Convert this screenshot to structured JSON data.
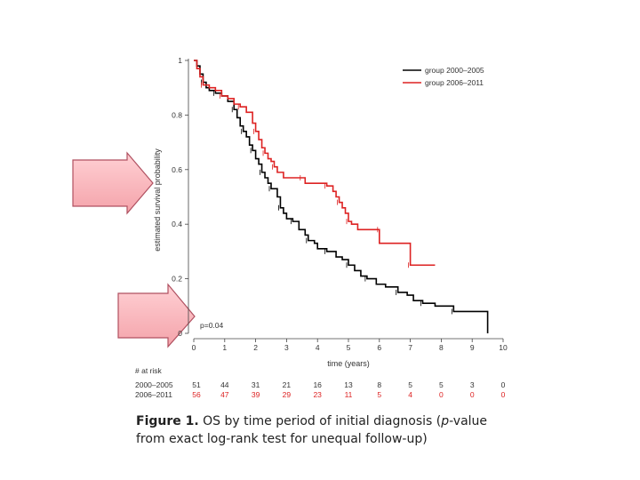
{
  "chart_data": {
    "type": "line",
    "ylabel": "estimated survival probability",
    "xlabel": "time (years)",
    "xlim": [
      0,
      10
    ],
    "ylim": [
      0,
      1
    ],
    "x_ticks": [
      "0",
      "1",
      "2",
      "3",
      "4",
      "5",
      "6",
      "7",
      "8",
      "9",
      "10"
    ],
    "y_ticks": [
      "0",
      "0.2",
      "0.4",
      "0.6",
      "0.8",
      "1"
    ],
    "grid": false,
    "legend_position": "top-right",
    "annotation": "p=0.04",
    "series": [
      {
        "name": "group 2000–2005",
        "color": "#000000",
        "points": [
          [
            0,
            1
          ],
          [
            0.1,
            0.98
          ],
          [
            0.2,
            0.95
          ],
          [
            0.3,
            0.92
          ],
          [
            0.4,
            0.9
          ],
          [
            0.5,
            0.89
          ],
          [
            0.7,
            0.88
          ],
          [
            0.9,
            0.87
          ],
          [
            1.1,
            0.85
          ],
          [
            1.3,
            0.82
          ],
          [
            1.4,
            0.79
          ],
          [
            1.5,
            0.76
          ],
          [
            1.6,
            0.74
          ],
          [
            1.7,
            0.72
          ],
          [
            1.8,
            0.69
          ],
          [
            1.9,
            0.67
          ],
          [
            2.0,
            0.64
          ],
          [
            2.1,
            0.62
          ],
          [
            2.2,
            0.59
          ],
          [
            2.3,
            0.57
          ],
          [
            2.4,
            0.55
          ],
          [
            2.5,
            0.53
          ],
          [
            2.6,
            0.53
          ],
          [
            2.7,
            0.5
          ],
          [
            2.8,
            0.46
          ],
          [
            2.9,
            0.44
          ],
          [
            3.0,
            0.42
          ],
          [
            3.2,
            0.41
          ],
          [
            3.4,
            0.38
          ],
          [
            3.6,
            0.36
          ],
          [
            3.7,
            0.34
          ],
          [
            3.9,
            0.33
          ],
          [
            4.0,
            0.31
          ],
          [
            4.3,
            0.3
          ],
          [
            4.6,
            0.28
          ],
          [
            4.8,
            0.27
          ],
          [
            5.0,
            0.25
          ],
          [
            5.2,
            0.23
          ],
          [
            5.4,
            0.21
          ],
          [
            5.6,
            0.2
          ],
          [
            5.9,
            0.18
          ],
          [
            6.2,
            0.17
          ],
          [
            6.6,
            0.15
          ],
          [
            6.9,
            0.14
          ],
          [
            7.1,
            0.12
          ],
          [
            7.4,
            0.11
          ],
          [
            7.8,
            0.1
          ],
          [
            8.3,
            0.1
          ],
          [
            8.4,
            0.08
          ],
          [
            9.5,
            0.08
          ],
          [
            9.5,
            0.0
          ]
        ],
        "at_risk": [
          "51",
          "44",
          "31",
          "21",
          "16",
          "13",
          "8",
          "5",
          "5",
          "3",
          "0"
        ]
      },
      {
        "name": "group 2006–2011",
        "color": "#dd2222",
        "points": [
          [
            0,
            1
          ],
          [
            0.1,
            0.97
          ],
          [
            0.2,
            0.94
          ],
          [
            0.3,
            0.91
          ],
          [
            0.5,
            0.9
          ],
          [
            0.7,
            0.89
          ],
          [
            0.9,
            0.87
          ],
          [
            1.1,
            0.86
          ],
          [
            1.3,
            0.84
          ],
          [
            1.5,
            0.83
          ],
          [
            1.7,
            0.81
          ],
          [
            1.9,
            0.77
          ],
          [
            2.0,
            0.74
          ],
          [
            2.1,
            0.71
          ],
          [
            2.2,
            0.68
          ],
          [
            2.3,
            0.66
          ],
          [
            2.4,
            0.64
          ],
          [
            2.5,
            0.63
          ],
          [
            2.6,
            0.61
          ],
          [
            2.7,
            0.59
          ],
          [
            2.9,
            0.57
          ],
          [
            3.5,
            0.57
          ],
          [
            3.6,
            0.55
          ],
          [
            4.2,
            0.55
          ],
          [
            4.3,
            0.54
          ],
          [
            4.5,
            0.52
          ],
          [
            4.6,
            0.5
          ],
          [
            4.7,
            0.48
          ],
          [
            4.8,
            0.46
          ],
          [
            4.9,
            0.44
          ],
          [
            5.0,
            0.41
          ],
          [
            5.1,
            0.4
          ],
          [
            5.3,
            0.38
          ],
          [
            6.0,
            0.38
          ],
          [
            6.0,
            0.33
          ],
          [
            7.0,
            0.33
          ],
          [
            7.0,
            0.25
          ],
          [
            7.8,
            0.25
          ]
        ],
        "at_risk": [
          "56",
          "47",
          "39",
          "29",
          "23",
          "11",
          "5",
          "4",
          "0",
          "0",
          "0"
        ]
      }
    ],
    "at_risk_title": "# at risk",
    "at_risk_x": [
      "0",
      "1",
      "2",
      "3",
      "4",
      "5",
      "6",
      "7",
      "8",
      "9",
      "10"
    ]
  },
  "caption": {
    "figure_label": "Figure 1.",
    "text_before_p": " OS by time period of initial diagnosis (",
    "p": "p",
    "text_after_p": "-value from exact log-rank test for unequal follow-up)"
  }
}
